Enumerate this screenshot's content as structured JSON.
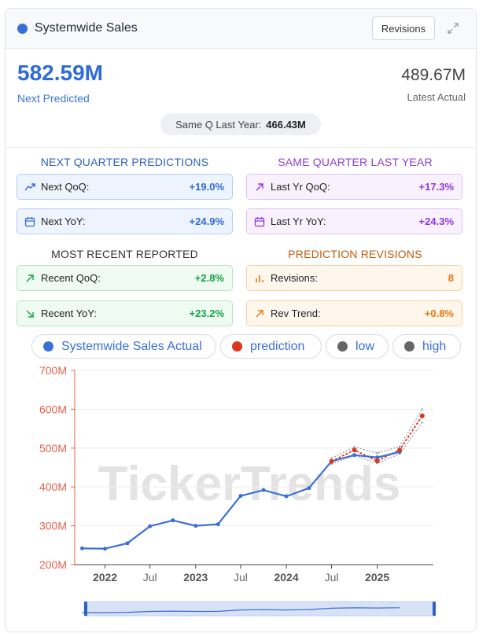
{
  "header": {
    "title": "Systemwide Sales",
    "revisions_button": "Revisions",
    "dot_color": "#3b6fd8"
  },
  "summary": {
    "next_predicted_value": "582.59M",
    "next_predicted_label": "Next Predicted",
    "latest_actual_value": "489.67M",
    "latest_actual_label": "Latest Actual",
    "same_q_label": "Same Q Last Year:",
    "same_q_value": "466.43M"
  },
  "sections": {
    "next_quarter": {
      "title": "NEXT QUARTER PREDICTIONS",
      "items": [
        {
          "label": "Next QoQ:",
          "value": "+19.0%",
          "icon": "trend-up-icon"
        },
        {
          "label": "Next YoY:",
          "value": "+24.9%",
          "icon": "calendar-icon"
        }
      ]
    },
    "same_quarter": {
      "title": "SAME QUARTER LAST YEAR",
      "items": [
        {
          "label": "Last Yr QoQ:",
          "value": "+17.3%",
          "icon": "arrow-up-right-icon"
        },
        {
          "label": "Last Yr YoY:",
          "value": "+24.3%",
          "icon": "calendar-icon"
        }
      ]
    },
    "recent": {
      "title": "MOST RECENT REPORTED",
      "items": [
        {
          "label": "Recent QoQ:",
          "value": "+2.8%",
          "icon": "arrow-up-right-icon"
        },
        {
          "label": "Recent YoY:",
          "value": "+23.2%",
          "icon": "arrow-down-right-icon"
        }
      ]
    },
    "revisions": {
      "title": "PREDICTION REVISIONS",
      "items": [
        {
          "label": "Revisions:",
          "value": "8",
          "icon": "bar-chart-icon"
        },
        {
          "label": "Rev Trend:",
          "value": "+0.8%",
          "icon": "arrow-up-right-icon"
        }
      ]
    }
  },
  "colors": {
    "actual": "#3b6fd8",
    "prediction": "#d9381e",
    "low": "#666666",
    "high": "#666666",
    "axis": "#e8604a"
  },
  "chart_data": {
    "type": "line",
    "watermark": "TickerTrends",
    "legend": [
      "Systemwide Sales Actual",
      "prediction",
      "low",
      "high"
    ],
    "legend_position": "top",
    "ylim": [
      200,
      700
    ],
    "y_ticks": [
      "200M",
      "300M",
      "400M",
      "500M",
      "600M",
      "700M"
    ],
    "x_ticks": [
      "2022",
      "Jul",
      "2023",
      "Jul",
      "2024",
      "Jul",
      "2025"
    ],
    "xlabel": "",
    "ylabel": "",
    "grid": true,
    "series": [
      {
        "name": "Systemwide Sales Actual",
        "x": [
          "2021-10-01",
          "2022-01-01",
          "2022-04-01",
          "2022-07-01",
          "2022-10-01",
          "2023-01-01",
          "2023-04-01",
          "2023-07-01",
          "2023-10-01",
          "2024-01-01",
          "2024-04-01",
          "2024-07-01",
          "2024-10-01",
          "2025-01-01",
          "2025-04-01"
        ],
        "values": [
          242,
          241,
          255,
          299,
          314,
          300,
          304,
          377,
          392,
          376,
          397,
          466,
          482,
          476,
          490
        ]
      },
      {
        "name": "prediction",
        "x": [
          "2024-07-01",
          "2024-10-01",
          "2025-01-01",
          "2025-04-01",
          "2025-07-01"
        ],
        "values": [
          466,
          495,
          467,
          495,
          583
        ]
      },
      {
        "name": "low",
        "x": [
          "2024-07-01",
          "2024-10-01",
          "2025-01-01",
          "2025-04-01",
          "2025-07-01"
        ],
        "values": [
          459,
          481,
          461,
          485,
          566
        ]
      },
      {
        "name": "high",
        "x": [
          "2024-07-01",
          "2024-10-01",
          "2025-01-01",
          "2025-04-01",
          "2025-07-01"
        ],
        "values": [
          474,
          503,
          487,
          504,
          600
        ]
      }
    ]
  }
}
